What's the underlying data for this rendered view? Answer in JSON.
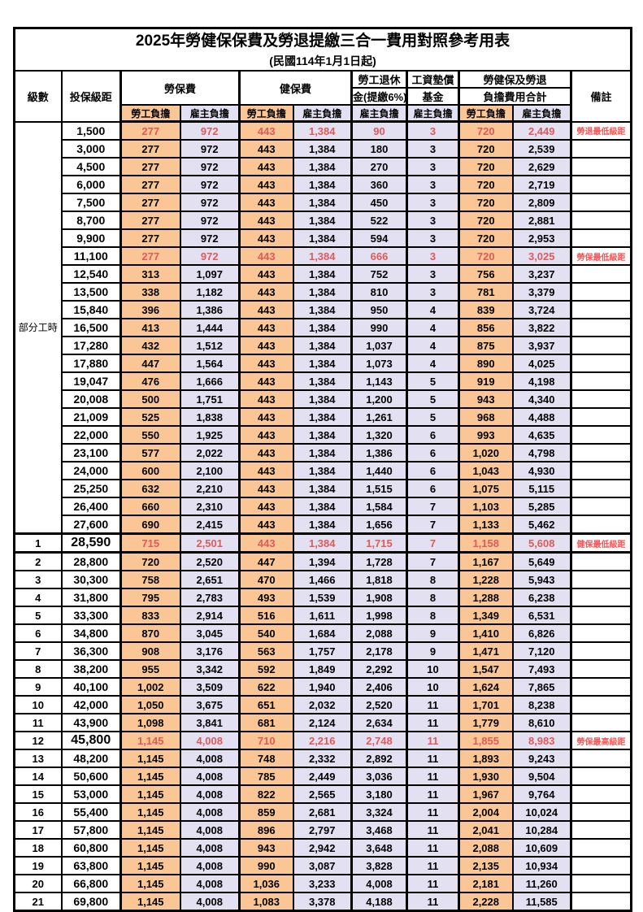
{
  "title": "2025年勞健保保費及勞退提繳三合一費用對照參考用表",
  "subtitle": "(民國114年1月1日起)",
  "colors": {
    "employee_bg": "#FAC695",
    "employer_bg": "#E3E0F2",
    "highlight_number": "#E05A5A",
    "remark_red": "#FF5252",
    "border": "#000000"
  },
  "columns": {
    "level": "級數",
    "bracket": "投保級距",
    "labor_fee": "勞保費",
    "health_fee": "健保費",
    "pension_l1": "勞工退休",
    "pension_l2": "金(提繳6%)",
    "fund_l1": "工資墊償",
    "fund_l2": "基金",
    "total_l1": "勞健保及勞退",
    "total_l2": "負擔費用合計",
    "remark": "備註",
    "employee": "勞工負擔",
    "employer": "雇主負擔"
  },
  "part_time": {
    "label": "部分工時",
    "rowspan": 23
  },
  "rows": [
    {
      "level": "",
      "bracket": "1,500",
      "values": [
        "277",
        "972",
        "443",
        "1,384",
        "90",
        "3",
        "720",
        "2,449"
      ],
      "remark": "勞退最低級距",
      "highlight": true,
      "big": false,
      "section": false
    },
    {
      "level": "",
      "bracket": "3,000",
      "values": [
        "277",
        "972",
        "443",
        "1,384",
        "180",
        "3",
        "720",
        "2,539"
      ],
      "remark": "",
      "highlight": false,
      "big": false,
      "section": false
    },
    {
      "level": "",
      "bracket": "4,500",
      "values": [
        "277",
        "972",
        "443",
        "1,384",
        "270",
        "3",
        "720",
        "2,629"
      ],
      "remark": "",
      "highlight": false,
      "big": false,
      "section": false
    },
    {
      "level": "",
      "bracket": "6,000",
      "values": [
        "277",
        "972",
        "443",
        "1,384",
        "360",
        "3",
        "720",
        "2,719"
      ],
      "remark": "",
      "highlight": false,
      "big": false,
      "section": false
    },
    {
      "level": "",
      "bracket": "7,500",
      "values": [
        "277",
        "972",
        "443",
        "1,384",
        "450",
        "3",
        "720",
        "2,809"
      ],
      "remark": "",
      "highlight": false,
      "big": false,
      "section": false
    },
    {
      "level": "",
      "bracket": "8,700",
      "values": [
        "277",
        "972",
        "443",
        "1,384",
        "522",
        "3",
        "720",
        "2,881"
      ],
      "remark": "",
      "highlight": false,
      "big": false,
      "section": false
    },
    {
      "level": "",
      "bracket": "9,900",
      "values": [
        "277",
        "972",
        "443",
        "1,384",
        "594",
        "3",
        "720",
        "2,953"
      ],
      "remark": "",
      "highlight": false,
      "big": false,
      "section": false
    },
    {
      "level": "",
      "bracket": "11,100",
      "values": [
        "277",
        "972",
        "443",
        "1,384",
        "666",
        "3",
        "720",
        "3,025"
      ],
      "remark": "勞保最低級距",
      "highlight": true,
      "big": false,
      "section": false
    },
    {
      "level": "",
      "bracket": "12,540",
      "values": [
        "313",
        "1,097",
        "443",
        "1,384",
        "752",
        "3",
        "756",
        "3,237"
      ],
      "remark": "",
      "highlight": false,
      "big": false,
      "section": false
    },
    {
      "level": "",
      "bracket": "13,500",
      "values": [
        "338",
        "1,182",
        "443",
        "1,384",
        "810",
        "3",
        "781",
        "3,379"
      ],
      "remark": "",
      "highlight": false,
      "big": false,
      "section": false
    },
    {
      "level": "",
      "bracket": "15,840",
      "values": [
        "396",
        "1,386",
        "443",
        "1,384",
        "950",
        "4",
        "839",
        "3,724"
      ],
      "remark": "",
      "highlight": false,
      "big": false,
      "section": false
    },
    {
      "level": "",
      "bracket": "16,500",
      "values": [
        "413",
        "1,444",
        "443",
        "1,384",
        "990",
        "4",
        "856",
        "3,822"
      ],
      "remark": "",
      "highlight": false,
      "big": false,
      "section": false
    },
    {
      "level": "",
      "bracket": "17,280",
      "values": [
        "432",
        "1,512",
        "443",
        "1,384",
        "1,037",
        "4",
        "875",
        "3,937"
      ],
      "remark": "",
      "highlight": false,
      "big": false,
      "section": false
    },
    {
      "level": "",
      "bracket": "17,880",
      "values": [
        "447",
        "1,564",
        "443",
        "1,384",
        "1,073",
        "4",
        "890",
        "4,025"
      ],
      "remark": "",
      "highlight": false,
      "big": false,
      "section": false
    },
    {
      "level": "",
      "bracket": "19,047",
      "values": [
        "476",
        "1,666",
        "443",
        "1,384",
        "1,143",
        "5",
        "919",
        "4,198"
      ],
      "remark": "",
      "highlight": false,
      "big": false,
      "section": false
    },
    {
      "level": "",
      "bracket": "20,008",
      "values": [
        "500",
        "1,751",
        "443",
        "1,384",
        "1,200",
        "5",
        "943",
        "4,340"
      ],
      "remark": "",
      "highlight": false,
      "big": false,
      "section": false
    },
    {
      "level": "",
      "bracket": "21,009",
      "values": [
        "525",
        "1,838",
        "443",
        "1,384",
        "1,261",
        "5",
        "968",
        "4,488"
      ],
      "remark": "",
      "highlight": false,
      "big": false,
      "section": false
    },
    {
      "level": "",
      "bracket": "22,000",
      "values": [
        "550",
        "1,925",
        "443",
        "1,384",
        "1,320",
        "6",
        "993",
        "4,635"
      ],
      "remark": "",
      "highlight": false,
      "big": false,
      "section": false
    },
    {
      "level": "",
      "bracket": "23,100",
      "values": [
        "577",
        "2,022",
        "443",
        "1,384",
        "1,386",
        "6",
        "1,020",
        "4,798"
      ],
      "remark": "",
      "highlight": false,
      "big": false,
      "section": false
    },
    {
      "level": "",
      "bracket": "24,000",
      "values": [
        "600",
        "2,100",
        "443",
        "1,384",
        "1,440",
        "6",
        "1,043",
        "4,930"
      ],
      "remark": "",
      "highlight": false,
      "big": false,
      "section": false
    },
    {
      "level": "",
      "bracket": "25,250",
      "values": [
        "632",
        "2,210",
        "443",
        "1,384",
        "1,515",
        "6",
        "1,075",
        "5,115"
      ],
      "remark": "",
      "highlight": false,
      "big": false,
      "section": false
    },
    {
      "level": "",
      "bracket": "26,400",
      "values": [
        "660",
        "2,310",
        "443",
        "1,384",
        "1,584",
        "7",
        "1,103",
        "5,285"
      ],
      "remark": "",
      "highlight": false,
      "big": false,
      "section": false
    },
    {
      "level": "",
      "bracket": "27,600",
      "values": [
        "690",
        "2,415",
        "443",
        "1,384",
        "1,656",
        "7",
        "1,133",
        "5,462"
      ],
      "remark": "",
      "highlight": false,
      "big": false,
      "section": false
    },
    {
      "level": "1",
      "bracket": "28,590",
      "values": [
        "715",
        "2,501",
        "443",
        "1,384",
        "1,715",
        "7",
        "1,158",
        "5,608"
      ],
      "remark": "健保最低級距",
      "highlight": true,
      "big": true,
      "section": true
    },
    {
      "level": "2",
      "bracket": "28,800",
      "values": [
        "720",
        "2,520",
        "447",
        "1,394",
        "1,728",
        "7",
        "1,167",
        "5,649"
      ],
      "remark": "",
      "highlight": false,
      "big": false,
      "section": false
    },
    {
      "level": "3",
      "bracket": "30,300",
      "values": [
        "758",
        "2,651",
        "470",
        "1,466",
        "1,818",
        "8",
        "1,228",
        "5,943"
      ],
      "remark": "",
      "highlight": false,
      "big": false,
      "section": false
    },
    {
      "level": "4",
      "bracket": "31,800",
      "values": [
        "795",
        "2,783",
        "493",
        "1,539",
        "1,908",
        "8",
        "1,288",
        "6,238"
      ],
      "remark": "",
      "highlight": false,
      "big": false,
      "section": false
    },
    {
      "level": "5",
      "bracket": "33,300",
      "values": [
        "833",
        "2,914",
        "516",
        "1,611",
        "1,998",
        "8",
        "1,349",
        "6,531"
      ],
      "remark": "",
      "highlight": false,
      "big": false,
      "section": false
    },
    {
      "level": "6",
      "bracket": "34,800",
      "values": [
        "870",
        "3,045",
        "540",
        "1,684",
        "2,088",
        "9",
        "1,410",
        "6,826"
      ],
      "remark": "",
      "highlight": false,
      "big": false,
      "section": false
    },
    {
      "level": "7",
      "bracket": "36,300",
      "values": [
        "908",
        "3,176",
        "563",
        "1,757",
        "2,178",
        "9",
        "1,471",
        "7,120"
      ],
      "remark": "",
      "highlight": false,
      "big": false,
      "section": false
    },
    {
      "level": "8",
      "bracket": "38,200",
      "values": [
        "955",
        "3,342",
        "592",
        "1,849",
        "2,292",
        "10",
        "1,547",
        "7,493"
      ],
      "remark": "",
      "highlight": false,
      "big": false,
      "section": false
    },
    {
      "level": "9",
      "bracket": "40,100",
      "values": [
        "1,002",
        "3,509",
        "622",
        "1,940",
        "2,406",
        "10",
        "1,624",
        "7,865"
      ],
      "remark": "",
      "highlight": false,
      "big": false,
      "section": false
    },
    {
      "level": "10",
      "bracket": "42,000",
      "values": [
        "1,050",
        "3,675",
        "651",
        "2,032",
        "2,520",
        "11",
        "1,701",
        "8,238"
      ],
      "remark": "",
      "highlight": false,
      "big": false,
      "section": false
    },
    {
      "level": "11",
      "bracket": "43,900",
      "values": [
        "1,098",
        "3,841",
        "681",
        "2,124",
        "2,634",
        "11",
        "1,779",
        "8,610"
      ],
      "remark": "",
      "highlight": false,
      "big": false,
      "section": false
    },
    {
      "level": "12",
      "bracket": "45,800",
      "values": [
        "1,145",
        "4,008",
        "710",
        "2,216",
        "2,748",
        "11",
        "1,855",
        "8,983"
      ],
      "remark": "勞保最高級距",
      "highlight": true,
      "big": true,
      "section": false
    },
    {
      "level": "13",
      "bracket": "48,200",
      "values": [
        "1,145",
        "4,008",
        "748",
        "2,332",
        "2,892",
        "11",
        "1,893",
        "9,243"
      ],
      "remark": "",
      "highlight": false,
      "big": false,
      "section": false
    },
    {
      "level": "14",
      "bracket": "50,600",
      "values": [
        "1,145",
        "4,008",
        "785",
        "2,449",
        "3,036",
        "11",
        "1,930",
        "9,504"
      ],
      "remark": "",
      "highlight": false,
      "big": false,
      "section": false
    },
    {
      "level": "15",
      "bracket": "53,000",
      "values": [
        "1,145",
        "4,008",
        "822",
        "2,565",
        "3,180",
        "11",
        "1,967",
        "9,764"
      ],
      "remark": "",
      "highlight": false,
      "big": false,
      "section": false
    },
    {
      "level": "16",
      "bracket": "55,400",
      "values": [
        "1,145",
        "4,008",
        "859",
        "2,681",
        "3,324",
        "11",
        "2,004",
        "10,024"
      ],
      "remark": "",
      "highlight": false,
      "big": false,
      "section": false
    },
    {
      "level": "17",
      "bracket": "57,800",
      "values": [
        "1,145",
        "4,008",
        "896",
        "2,797",
        "3,468",
        "11",
        "2,041",
        "10,284"
      ],
      "remark": "",
      "highlight": false,
      "big": false,
      "section": false
    },
    {
      "level": "18",
      "bracket": "60,800",
      "values": [
        "1,145",
        "4,008",
        "943",
        "2,942",
        "3,648",
        "11",
        "2,088",
        "10,609"
      ],
      "remark": "",
      "highlight": false,
      "big": false,
      "section": false
    },
    {
      "level": "19",
      "bracket": "63,800",
      "values": [
        "1,145",
        "4,008",
        "990",
        "3,087",
        "3,828",
        "11",
        "2,135",
        "10,934"
      ],
      "remark": "",
      "highlight": false,
      "big": false,
      "section": false
    },
    {
      "level": "20",
      "bracket": "66,800",
      "values": [
        "1,145",
        "4,008",
        "1,036",
        "3,233",
        "4,008",
        "11",
        "2,181",
        "11,260"
      ],
      "remark": "",
      "highlight": false,
      "big": false,
      "section": false
    },
    {
      "level": "21",
      "bracket": "69,800",
      "values": [
        "1,145",
        "4,008",
        "1,083",
        "3,378",
        "4,188",
        "11",
        "2,228",
        "11,585"
      ],
      "remark": "",
      "highlight": false,
      "big": false,
      "section": false
    }
  ]
}
